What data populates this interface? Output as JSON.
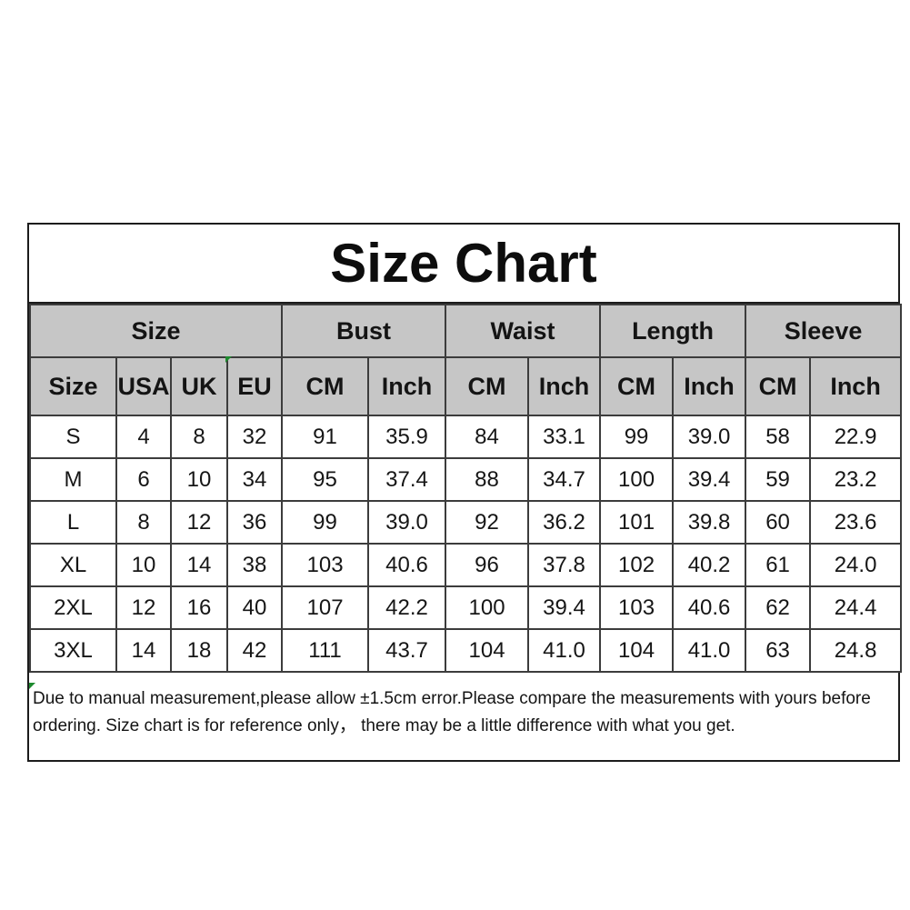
{
  "title": "Size Chart",
  "table": {
    "groups": [
      {
        "label": "Size",
        "span": 4
      },
      {
        "label": "Bust",
        "span": 2
      },
      {
        "label": "Waist",
        "span": 2
      },
      {
        "label": "Length",
        "span": 2
      },
      {
        "label": "Sleeve",
        "span": 2
      }
    ],
    "columns": [
      "Size",
      "USA",
      "UK",
      "EU",
      "CM",
      "Inch",
      "CM",
      "Inch",
      "CM",
      "Inch",
      "CM",
      "Inch"
    ],
    "rows": [
      [
        "S",
        "4",
        "8",
        "32",
        "91",
        "35.9",
        "84",
        "33.1",
        "99",
        "39.0",
        "58",
        "22.9"
      ],
      [
        "M",
        "6",
        "10",
        "34",
        "95",
        "37.4",
        "88",
        "34.7",
        "100",
        "39.4",
        "59",
        "23.2"
      ],
      [
        "L",
        "8",
        "12",
        "36",
        "99",
        "39.0",
        "92",
        "36.2",
        "101",
        "39.8",
        "60",
        "23.6"
      ],
      [
        "XL",
        "10",
        "14",
        "38",
        "103",
        "40.6",
        "96",
        "37.8",
        "102",
        "40.2",
        "61",
        "24.0"
      ],
      [
        "2XL",
        "12",
        "16",
        "40",
        "107",
        "42.2",
        "100",
        "39.4",
        "103",
        "40.6",
        "62",
        "24.4"
      ],
      [
        "3XL",
        "14",
        "18",
        "42",
        "111",
        "43.7",
        "104",
        "41.0",
        "104",
        "41.0",
        "63",
        "24.8"
      ]
    ]
  },
  "footer": {
    "line1": "Due to manual measurement,please allow ±1.5cm error.Please compare the measurements with yours before",
    "line2": "ordering. Size chart is for reference only，  there may be a little difference with what you get."
  },
  "colors": {
    "header_bg": "#c6c6c6",
    "border": "#3c3c3c",
    "outer_border": "#1c1c1c",
    "text": "#111111",
    "artifact_green": "#1e8a2e"
  }
}
